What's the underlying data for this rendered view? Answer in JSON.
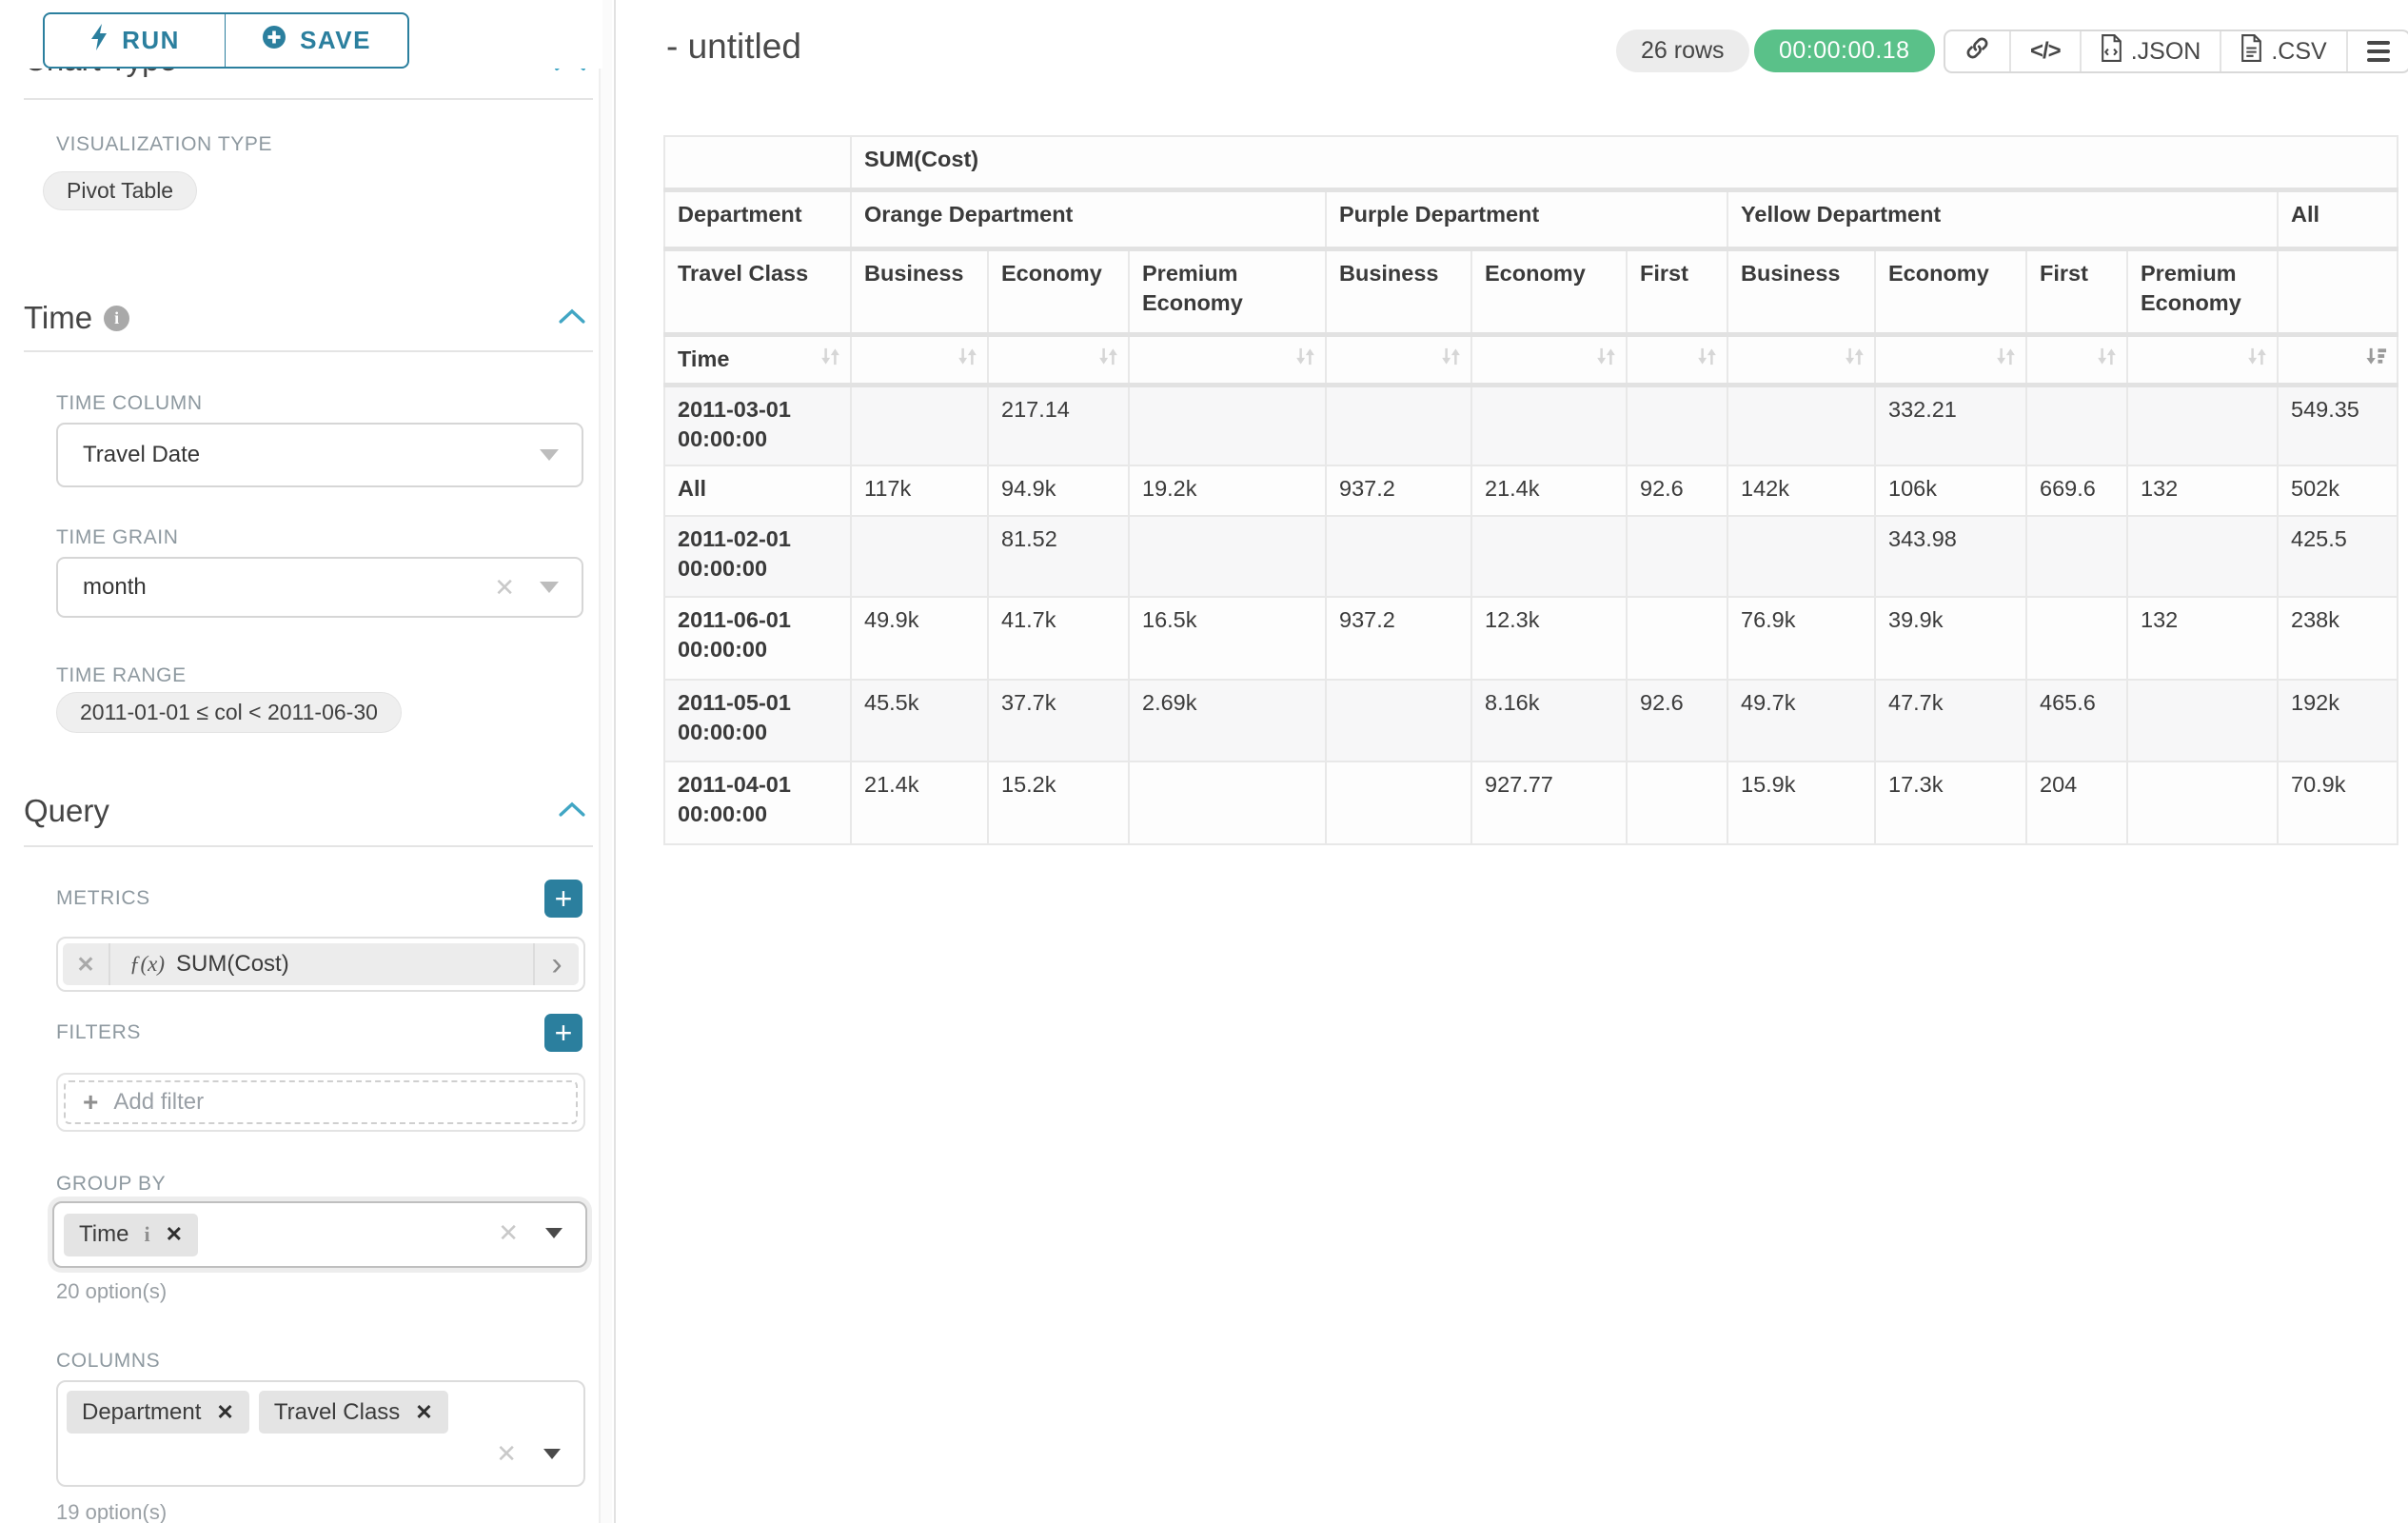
{
  "colors": {
    "accent_teal": "#2b7f9e",
    "timer_green": "#5ac189"
  },
  "icons": {
    "run": "lightning-bolt",
    "save": "plus-circle",
    "info": "i",
    "section_collapse": "chevron-up",
    "select_caret": "caret-down",
    "clear": "✕",
    "plus": "+",
    "metric_fx": "ƒ(x)",
    "metric_expand": "›",
    "link": "chain-link",
    "code": "</>",
    "file": "document",
    "menu": "≡",
    "sort": "⇵",
    "sort_desc": "⇩"
  },
  "sidebar": {
    "run_label": "RUN",
    "save_label": "SAVE",
    "chart_type_section": "Chart Type",
    "viz_type_label": "VISUALIZATION TYPE",
    "viz_type_value": "Pivot Table",
    "time_section": "Time",
    "time_column_label": "TIME COLUMN",
    "time_column_value": "Travel Date",
    "time_grain_label": "TIME GRAIN",
    "time_grain_value": "month",
    "time_range_label": "TIME RANGE",
    "time_range_value": "2011-01-01 ≤ col < 2011-06-30",
    "query_section": "Query",
    "metrics_label": "METRICS",
    "metric_fx": "ƒ(x)",
    "metric_value": "SUM(Cost)",
    "metric_expand": "›",
    "metric_remove": "✕",
    "filters_label": "FILTERS",
    "add_filter_label": "Add filter",
    "group_by_label": "GROUP BY",
    "group_by_chips": [
      "Time"
    ],
    "group_by_options": "20 option(s)",
    "columns_label": "COLUMNS",
    "columns_chips": [
      "Department",
      "Travel Class"
    ],
    "columns_options": "19 option(s)",
    "chip_info": "i",
    "chip_remove": "✕",
    "clear_glyph": "✕",
    "plus_glyph": "+"
  },
  "header": {
    "title": "- untitled",
    "rows_badge": "26 rows",
    "timer": "00:00:00.18",
    "export_json_label": ".JSON",
    "export_csv_label": ".CSV",
    "code_glyph": "</>"
  },
  "pivot": {
    "type": "table",
    "metric_label": "SUM(Cost)",
    "department_label": "Department",
    "travel_class_label": "Travel Class",
    "time_label": "Time",
    "col_groups": [
      {
        "label": "Orange Department",
        "children": [
          "Business",
          "Economy",
          "Premium Economy"
        ]
      },
      {
        "label": "Purple Department",
        "children": [
          "Business",
          "Economy",
          "First"
        ]
      },
      {
        "label": "Yellow Department",
        "children": [
          "Business",
          "Economy",
          "First",
          "Premium Economy"
        ]
      },
      {
        "label": "All",
        "children": [
          ""
        ]
      }
    ],
    "rows": [
      {
        "label": "2011-03-01 00:00:00",
        "values": [
          "",
          "217.14",
          "",
          "",
          "",
          "",
          "",
          "332.21",
          "",
          "",
          "549.35"
        ]
      },
      {
        "label": "All",
        "values": [
          "117k",
          "94.9k",
          "19.2k",
          "937.2",
          "21.4k",
          "92.6",
          "142k",
          "106k",
          "669.6",
          "132",
          "502k"
        ]
      },
      {
        "label": "2011-02-01 00:00:00",
        "values": [
          "",
          "81.52",
          "",
          "",
          "",
          "",
          "",
          "343.98",
          "",
          "",
          "425.5"
        ]
      },
      {
        "label": "2011-06-01 00:00:00",
        "values": [
          "49.9k",
          "41.7k",
          "16.5k",
          "937.2",
          "12.3k",
          "",
          "76.9k",
          "39.9k",
          "",
          "132",
          "238k"
        ]
      },
      {
        "label": "2011-05-01 00:00:00",
        "values": [
          "45.5k",
          "37.7k",
          "2.69k",
          "",
          "8.16k",
          "92.6",
          "49.7k",
          "47.7k",
          "465.6",
          "",
          "192k"
        ]
      },
      {
        "label": "2011-04-01 00:00:00",
        "values": [
          "21.4k",
          "15.2k",
          "",
          "",
          "927.77",
          "",
          "15.9k",
          "17.3k",
          "204",
          "",
          "70.9k"
        ]
      }
    ]
  }
}
